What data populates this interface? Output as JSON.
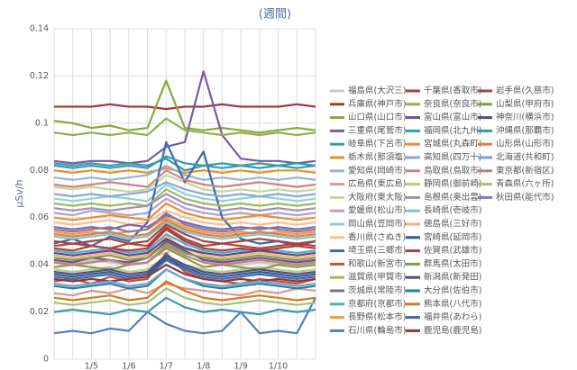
{
  "chart_data": {
    "type": "line",
    "title": "(週間)",
    "y_label": "μSv/h",
    "categories": [
      null,
      null,
      "1/5",
      null,
      "1/6",
      null,
      "1/7",
      null,
      "1/8",
      null,
      "1/9",
      null,
      "1/10",
      null,
      null
    ],
    "ylim": [
      0,
      0.14
    ],
    "yticks": [
      0,
      0.02,
      0.04,
      0.06,
      0.08,
      0.1,
      0.12,
      0.14
    ],
    "grid": true,
    "series": [
      {
        "name": "福島県(大沢三)",
        "color": "#c8c8c8",
        "values": [
          0.041,
          0.04,
          0.042,
          0.041,
          0.04,
          0.043,
          0.045,
          0.048,
          0.044,
          0.041,
          0.04,
          0.041,
          0.04,
          0.042,
          0.041
        ]
      },
      {
        "name": "兵庫県(神戸市)",
        "color": "#a33a3a",
        "values": [
          0.107,
          0.107,
          0.107,
          0.108,
          0.107,
          0.107,
          0.106,
          0.107,
          0.107,
          0.108,
          0.107,
          0.107,
          0.107,
          0.108,
          0.107
        ]
      },
      {
        "name": "山口県(山口市)",
        "color": "#8aa83a",
        "values": [
          0.101,
          0.1,
          0.098,
          0.099,
          0.097,
          0.098,
          0.118,
          0.098,
          0.097,
          0.098,
          0.097,
          0.096,
          0.097,
          0.098,
          0.097
        ]
      },
      {
        "name": "三重県(尾鷲市)",
        "color": "#7a5aa0",
        "values": [
          0.084,
          0.083,
          0.084,
          0.084,
          0.083,
          0.084,
          0.09,
          0.092,
          0.122,
          0.095,
          0.085,
          0.084,
          0.084,
          0.083,
          0.084
        ]
      },
      {
        "name": "岐阜県(下呂市)",
        "color": "#3a9aa8",
        "values": [
          0.083,
          0.082,
          0.083,
          0.082,
          0.083,
          0.082,
          0.085,
          0.08,
          0.082,
          0.083,
          0.082,
          0.083,
          0.082,
          0.083,
          0.082
        ]
      },
      {
        "name": "栃木県(那須塩)",
        "color": "#e8902e",
        "values": [
          0.08,
          0.079,
          0.08,
          0.079,
          0.08,
          0.079,
          0.081,
          0.079,
          0.08,
          0.079,
          0.08,
          0.079,
          0.08,
          0.08,
          0.079
        ]
      },
      {
        "name": "愛知県(岡崎市)",
        "color": "#95b3d7",
        "values": [
          0.077,
          0.076,
          0.077,
          0.076,
          0.077,
          0.078,
          0.082,
          0.078,
          0.076,
          0.077,
          0.076,
          0.077,
          0.076,
          0.077,
          0.076
        ]
      },
      {
        "name": "広島県(東広島)",
        "color": "#d99694",
        "values": [
          0.028,
          0.027,
          0.029,
          0.028,
          0.03,
          0.028,
          0.032,
          0.03,
          0.029,
          0.028,
          0.027,
          0.029,
          0.028,
          0.03,
          0.029
        ]
      },
      {
        "name": "大阪府(東大阪)",
        "color": "#c3d69b",
        "values": [
          0.073,
          0.072,
          0.073,
          0.072,
          0.071,
          0.072,
          0.078,
          0.075,
          0.072,
          0.071,
          0.072,
          0.071,
          0.072,
          0.071,
          0.072
        ]
      },
      {
        "name": "愛媛県(松山市)",
        "color": "#b3a2c7",
        "values": [
          0.062,
          0.061,
          0.063,
          0.062,
          0.061,
          0.062,
          0.068,
          0.064,
          0.062,
          0.061,
          0.062,
          0.061,
          0.062,
          0.061,
          0.062
        ]
      },
      {
        "name": "岡山県(笠岡市)",
        "color": "#93cddd",
        "values": [
          0.068,
          0.067,
          0.068,
          0.069,
          0.068,
          0.067,
          0.074,
          0.07,
          0.068,
          0.067,
          0.068,
          0.069,
          0.068,
          0.067,
          0.068
        ]
      },
      {
        "name": "香川県(さぬき)",
        "color": "#fac090",
        "values": [
          0.058,
          0.057,
          0.058,
          0.059,
          0.057,
          0.058,
          0.063,
          0.06,
          0.058,
          0.057,
          0.058,
          0.057,
          0.058,
          0.057,
          0.058
        ]
      },
      {
        "name": "埼玉県(三郷市)",
        "color": "#3a6ab0",
        "values": [
          0.049,
          0.051,
          0.048,
          0.052,
          0.05,
          0.058,
          0.092,
          0.075,
          0.088,
          0.06,
          0.051,
          0.049,
          0.05,
          0.048,
          0.05
        ]
      },
      {
        "name": "和歌山(新宮市)",
        "color": "#c0504d",
        "values": [
          0.033,
          0.034,
          0.032,
          0.035,
          0.033,
          0.034,
          0.045,
          0.037,
          0.034,
          0.033,
          0.032,
          0.034,
          0.033,
          0.032,
          0.034
        ]
      },
      {
        "name": "滋賀県(甲賀市)",
        "color": "#9bbb59",
        "values": [
          0.066,
          0.065,
          0.066,
          0.065,
          0.066,
          0.065,
          0.072,
          0.068,
          0.066,
          0.065,
          0.066,
          0.065,
          0.066,
          0.065,
          0.066
        ]
      },
      {
        "name": "茨城県(常陸市)",
        "color": "#8064a2",
        "values": [
          0.056,
          0.055,
          0.056,
          0.055,
          0.057,
          0.056,
          0.061,
          0.058,
          0.056,
          0.055,
          0.056,
          0.055,
          0.056,
          0.055,
          0.056
        ]
      },
      {
        "name": "京都府(京都市)",
        "color": "#4bacc6",
        "values": [
          0.046,
          0.045,
          0.046,
          0.047,
          0.045,
          0.046,
          0.053,
          0.049,
          0.046,
          0.045,
          0.046,
          0.047,
          0.046,
          0.045,
          0.046
        ]
      },
      {
        "name": "長野県(松本市)",
        "color": "#f79646",
        "values": [
          0.054,
          0.053,
          0.054,
          0.053,
          0.054,
          0.055,
          0.06,
          0.056,
          0.054,
          0.053,
          0.054,
          0.053,
          0.054,
          0.053,
          0.054
        ]
      },
      {
        "name": "石川県(輪島市)",
        "color": "#4f81bd",
        "values": [
          0.011,
          0.012,
          0.011,
          0.013,
          0.012,
          0.02,
          0.015,
          0.012,
          0.011,
          0.012,
          0.02,
          0.011,
          0.012,
          0.011,
          0.026
        ]
      },
      {
        "name": "千葉県(香取市)",
        "color": "#b23a3a",
        "values": [
          0.047,
          0.046,
          0.048,
          0.047,
          0.046,
          0.047,
          0.055,
          0.05,
          0.047,
          0.046,
          0.047,
          0.046,
          0.047,
          0.048,
          0.047
        ]
      },
      {
        "name": "奈良県(奈良市)",
        "color": "#8fb04a",
        "values": [
          0.096,
          0.095,
          0.096,
          0.095,
          0.096,
          0.095,
          0.102,
          0.097,
          0.096,
          0.095,
          0.096,
          0.095,
          0.096,
          0.095,
          0.096
        ]
      },
      {
        "name": "富山県(富山市)",
        "color": "#6c4f96",
        "values": [
          0.042,
          0.041,
          0.043,
          0.042,
          0.041,
          0.043,
          0.05,
          0.046,
          0.042,
          0.041,
          0.042,
          0.043,
          0.042,
          0.041,
          0.042
        ]
      },
      {
        "name": "福岡県(北九州)",
        "color": "#2f9fae",
        "values": [
          0.082,
          0.081,
          0.082,
          0.081,
          0.082,
          0.081,
          0.086,
          0.083,
          0.082,
          0.081,
          0.082,
          0.081,
          0.082,
          0.081,
          0.082
        ]
      },
      {
        "name": "宮城県(丸森町)",
        "color": "#f08a30",
        "values": [
          0.06,
          0.059,
          0.06,
          0.061,
          0.06,
          0.059,
          0.066,
          0.062,
          0.06,
          0.059,
          0.06,
          0.061,
          0.06,
          0.059,
          0.06
        ]
      },
      {
        "name": "高知県(四万十)",
        "color": "#8aaad0",
        "values": [
          0.07,
          0.069,
          0.07,
          0.069,
          0.07,
          0.071,
          0.075,
          0.072,
          0.07,
          0.069,
          0.07,
          0.069,
          0.07,
          0.069,
          0.07
        ]
      },
      {
        "name": "鳥取県(鳥取市)",
        "color": "#c98584",
        "values": [
          0.074,
          0.073,
          0.074,
          0.075,
          0.074,
          0.073,
          0.08,
          0.076,
          0.074,
          0.073,
          0.074,
          0.075,
          0.074,
          0.073,
          0.074
        ]
      },
      {
        "name": "静岡県(御前崎)",
        "color": "#b5cc88",
        "values": [
          0.038,
          0.037,
          0.038,
          0.039,
          0.037,
          0.038,
          0.044,
          0.04,
          0.038,
          0.037,
          0.038,
          0.039,
          0.038,
          0.037,
          0.038
        ]
      },
      {
        "name": "島根県(奥出雲)",
        "color": "#a090bb",
        "values": [
          0.064,
          0.063,
          0.064,
          0.063,
          0.064,
          0.065,
          0.07,
          0.066,
          0.064,
          0.063,
          0.064,
          0.063,
          0.064,
          0.063,
          0.064
        ]
      },
      {
        "name": "長崎県(壱岐市)",
        "color": "#7fc0d2",
        "values": [
          0.052,
          0.051,
          0.052,
          0.053,
          0.051,
          0.052,
          0.058,
          0.054,
          0.052,
          0.051,
          0.052,
          0.053,
          0.052,
          0.051,
          0.052
        ]
      },
      {
        "name": "徳島県(三好市)",
        "color": "#f5b07a",
        "values": [
          0.044,
          0.043,
          0.044,
          0.045,
          0.043,
          0.044,
          0.052,
          0.047,
          0.044,
          0.043,
          0.044,
          0.045,
          0.044,
          0.043,
          0.044
        ]
      },
      {
        "name": "宮崎県(延岡市)",
        "color": "#2e5c96",
        "values": [
          0.036,
          0.035,
          0.036,
          0.037,
          0.035,
          0.036,
          0.043,
          0.039,
          0.036,
          0.035,
          0.036,
          0.037,
          0.036,
          0.035,
          0.036
        ]
      },
      {
        "name": "佐賀県(武雄市)",
        "color": "#b04040",
        "values": [
          0.048,
          0.049,
          0.048,
          0.047,
          0.049,
          0.048,
          0.056,
          0.051,
          0.048,
          0.049,
          0.048,
          0.047,
          0.048,
          0.049,
          0.048
        ]
      },
      {
        "name": "群馬県(太田市)",
        "color": "#7fa040",
        "values": [
          0.039,
          0.04,
          0.039,
          0.038,
          0.04,
          0.041,
          0.047,
          0.043,
          0.039,
          0.04,
          0.039,
          0.038,
          0.04,
          0.039,
          0.04
        ]
      },
      {
        "name": "新潟県(新発田)",
        "color": "#5f4585",
        "values": [
          0.045,
          0.044,
          0.045,
          0.046,
          0.044,
          0.045,
          0.051,
          0.047,
          0.045,
          0.044,
          0.045,
          0.046,
          0.045,
          0.044,
          0.045
        ]
      },
      {
        "name": "大分県(佐伯市)",
        "color": "#22869a",
        "values": [
          0.031,
          0.03,
          0.031,
          0.032,
          0.03,
          0.031,
          0.038,
          0.034,
          0.031,
          0.03,
          0.031,
          0.032,
          0.031,
          0.03,
          0.031
        ]
      },
      {
        "name": "熊本県(八代市)",
        "color": "#d8781e",
        "values": [
          0.026,
          0.025,
          0.026,
          0.027,
          0.025,
          0.026,
          0.033,
          0.029,
          0.026,
          0.025,
          0.026,
          0.027,
          0.026,
          0.025,
          0.026
        ]
      },
      {
        "name": "福井県(あわら)",
        "color": "#3d6ba8",
        "values": [
          0.035,
          0.034,
          0.035,
          0.036,
          0.034,
          0.035,
          0.042,
          0.038,
          0.035,
          0.034,
          0.035,
          0.036,
          0.035,
          0.034,
          0.035
        ]
      },
      {
        "name": "鹿児島(鹿児島)",
        "color": "#943634",
        "values": [
          0.034,
          0.033,
          0.034,
          0.033,
          0.034,
          0.035,
          0.04,
          0.036,
          0.034,
          0.033,
          0.034,
          0.033,
          0.034,
          0.033,
          0.034
        ]
      },
      {
        "name": "岩手県(久慈市)",
        "color": "#9e4845",
        "values": [
          0.05,
          0.049,
          0.05,
          0.051,
          0.049,
          0.05,
          0.057,
          0.053,
          0.05,
          0.049,
          0.05,
          0.051,
          0.05,
          0.049,
          0.05
        ]
      },
      {
        "name": "山梨県(甲府市)",
        "color": "#809d3f",
        "values": [
          0.043,
          0.042,
          0.043,
          0.044,
          0.042,
          0.043,
          0.049,
          0.045,
          0.043,
          0.042,
          0.043,
          0.044,
          0.043,
          0.042,
          0.043
        ]
      },
      {
        "name": "神奈川(横浜市)",
        "color": "#5c4a7e",
        "values": [
          0.037,
          0.036,
          0.037,
          0.038,
          0.036,
          0.037,
          0.044,
          0.04,
          0.037,
          0.036,
          0.037,
          0.038,
          0.037,
          0.036,
          0.037
        ]
      },
      {
        "name": "沖縄県(那覇市)",
        "color": "#3a98ab",
        "values": [
          0.02,
          0.021,
          0.02,
          0.019,
          0.021,
          0.02,
          0.026,
          0.022,
          0.02,
          0.021,
          0.02,
          0.019,
          0.021,
          0.02,
          0.021
        ]
      },
      {
        "name": "山形県(山形市)",
        "color": "#d8833a",
        "values": [
          0.053,
          0.052,
          0.053,
          0.054,
          0.052,
          0.053,
          0.059,
          0.055,
          0.053,
          0.052,
          0.053,
          0.054,
          0.053,
          0.052,
          0.053
        ]
      },
      {
        "name": "北海道(共和町)",
        "color": "#7f9ec4",
        "values": [
          0.032,
          0.031,
          0.032,
          0.033,
          0.031,
          0.032,
          0.038,
          0.034,
          0.032,
          0.031,
          0.032,
          0.033,
          0.032,
          0.031,
          0.032
        ]
      },
      {
        "name": "東京都(新宿区)",
        "color": "#c27f7d",
        "values": [
          0.041,
          0.04,
          0.041,
          0.042,
          0.04,
          0.041,
          0.048,
          0.044,
          0.041,
          0.04,
          0.041,
          0.042,
          0.041,
          0.04,
          0.041
        ]
      },
      {
        "name": "青森県(六ヶ所)",
        "color": "#a8c07a",
        "values": [
          0.024,
          0.023,
          0.024,
          0.025,
          0.023,
          0.024,
          0.03,
          0.026,
          0.024,
          0.023,
          0.024,
          0.025,
          0.024,
          0.023,
          0.024
        ]
      },
      {
        "name": "秋田県(能代市)",
        "color": "#8a78a8",
        "values": [
          0.055,
          0.054,
          0.055,
          0.056,
          0.054,
          0.055,
          0.062,
          0.057,
          0.055,
          0.054,
          0.055,
          0.056,
          0.055,
          0.054,
          0.055
        ]
      }
    ]
  }
}
